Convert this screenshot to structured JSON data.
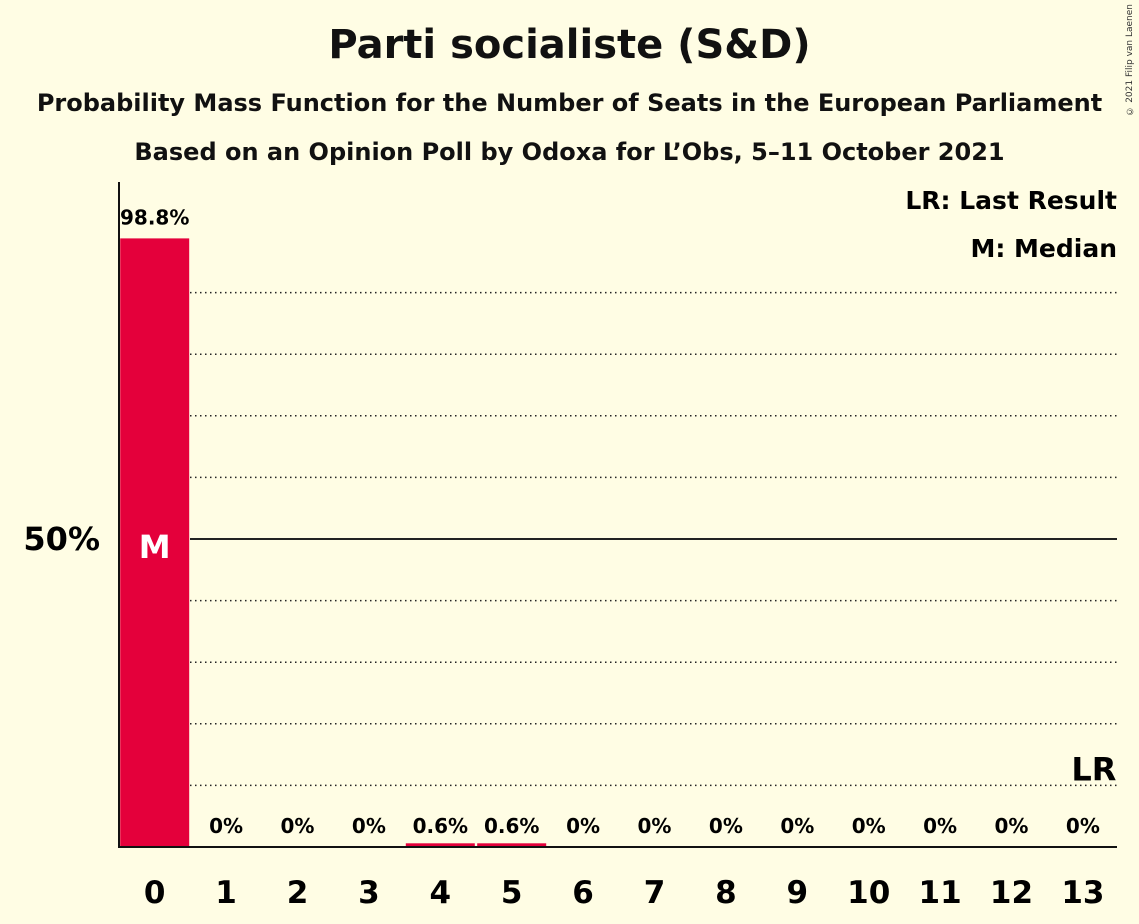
{
  "title": "Parti socialiste (S&D)",
  "subtitle": "Probability Mass Function for the Number of Seats in the European Parliament",
  "subtitle2": "Based on an Opinion Poll by Odoxa for L’Obs, 5–11 October 2021",
  "copyright": "© 2021 Filip van Laenen",
  "legend": {
    "last_result": "LR: Last Result",
    "median": "M: Median"
  },
  "colors": {
    "bar": "#E4003B",
    "background": "#FFFDE4"
  },
  "chart_data": {
    "type": "bar",
    "categories": [
      "0",
      "1",
      "2",
      "3",
      "4",
      "5",
      "6",
      "7",
      "8",
      "9",
      "10",
      "11",
      "12",
      "13"
    ],
    "values": [
      98.8,
      0,
      0,
      0,
      0.6,
      0.6,
      0,
      0,
      0,
      0,
      0,
      0,
      0,
      0
    ],
    "value_labels": [
      "98.8%",
      "0%",
      "0%",
      "0%",
      "0.6%",
      "0.6%",
      "0%",
      "0%",
      "0%",
      "0%",
      "0%",
      "0%",
      "0%",
      "0%"
    ],
    "ylim": [
      0,
      100
    ],
    "ytick_label": "50%",
    "ytick_value": 50,
    "median_seat": "0",
    "median_marker": "M",
    "last_result_seat": "13",
    "last_result_marker": "LR",
    "grid": true,
    "legend_position": "top-right"
  }
}
